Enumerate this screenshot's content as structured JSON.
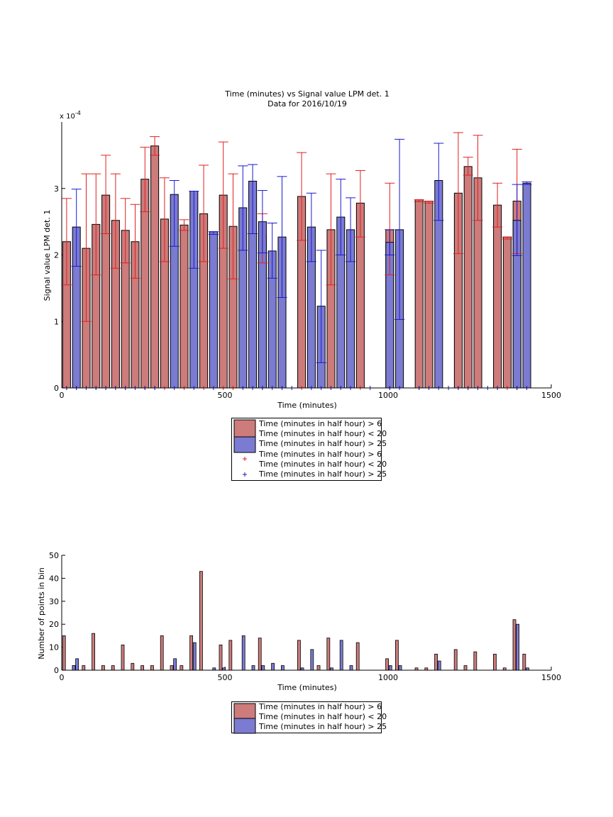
{
  "chart_data": [
    {
      "type": "bar",
      "title": "Time (minutes) vs Signal value LPM det. 1",
      "subtitle": "Data for 2016/10/19",
      "xlabel": "Time (minutes)",
      "ylabel": "Signal value LPM det. 1",
      "y_exponent_label": "x 10",
      "y_exponent_power": "-4",
      "xlim": [
        0,
        1500
      ],
      "ylim": [
        0,
        4
      ],
      "x_ticks": [
        0,
        500,
        1000,
        1500
      ],
      "y_ticks": [
        0,
        1,
        2,
        3
      ],
      "grid": false,
      "colors": {
        "red": "#cd7b7b",
        "blue": "#7b7bd2",
        "red_err": "#e02020",
        "blue_err": "#1a1ad0"
      },
      "legend": {
        "placement": "bottom-center",
        "entries": [
          "Time (minutes in half hour) > 6",
          "Time (minutes in half hour) < 20",
          "Time (minutes in half hour) > 25",
          "Time (minutes in half hour) > 6",
          "Time (minutes in half hour) < 20",
          "Time (minutes in half hour) > 25"
        ]
      },
      "series": [
        {
          "color": "red",
          "bars": [
            {
              "x": 15,
              "y": 2.2,
              "lo": 1.55,
              "hi": 2.85
            },
            {
              "x": 75,
              "y": 2.1,
              "lo": 1.0,
              "hi": 3.22
            },
            {
              "x": 105,
              "y": 2.46,
              "lo": 1.7,
              "hi": 3.22
            },
            {
              "x": 135,
              "y": 2.9,
              "lo": 2.32,
              "hi": 3.5
            },
            {
              "x": 165,
              "y": 2.52,
              "lo": 1.8,
              "hi": 3.22
            },
            {
              "x": 195,
              "y": 2.37,
              "lo": 1.88,
              "hi": 2.85
            },
            {
              "x": 225,
              "y": 2.2,
              "lo": 1.65,
              "hi": 2.76
            },
            {
              "x": 255,
              "y": 3.14,
              "lo": 2.65,
              "hi": 3.62
            },
            {
              "x": 285,
              "y": 3.64,
              "lo": 3.5,
              "hi": 3.78
            },
            {
              "x": 315,
              "y": 2.54,
              "lo": 1.9,
              "hi": 3.16
            },
            {
              "x": 375,
              "y": 2.45,
              "lo": 2.37,
              "hi": 2.53
            },
            {
              "x": 435,
              "y": 2.62,
              "lo": 1.9,
              "hi": 3.35
            },
            {
              "x": 495,
              "y": 2.9,
              "lo": 2.1,
              "hi": 3.7
            },
            {
              "x": 525,
              "y": 2.43,
              "lo": 1.64,
              "hi": 3.22
            },
            {
              "x": 615,
              "y": 2.3,
              "lo": 1.88,
              "hi": 2.62
            },
            {
              "x": 735,
              "y": 2.88,
              "lo": 2.22,
              "hi": 3.54
            },
            {
              "x": 825,
              "y": 2.38,
              "lo": 1.55,
              "hi": 3.22
            },
            {
              "x": 915,
              "y": 2.78,
              "lo": 2.27,
              "hi": 3.27
            },
            {
              "x": 1005,
              "y": 2.38,
              "lo": 1.7,
              "hi": 3.08
            },
            {
              "x": 1095,
              "y": 2.83,
              "lo": 2.8,
              "hi": 2.83
            },
            {
              "x": 1125,
              "y": 2.81,
              "lo": 2.78,
              "hi": 2.81
            },
            {
              "x": 1215,
              "y": 2.93,
              "lo": 2.02,
              "hi": 3.84
            },
            {
              "x": 1245,
              "y": 3.33,
              "lo": 3.2,
              "hi": 3.47
            },
            {
              "x": 1275,
              "y": 3.16,
              "lo": 2.52,
              "hi": 3.8
            },
            {
              "x": 1335,
              "y": 2.75,
              "lo": 2.42,
              "hi": 3.08
            },
            {
              "x": 1365,
              "y": 2.27,
              "lo": 2.24,
              "hi": 2.27
            },
            {
              "x": 1395,
              "y": 2.81,
              "lo": 2.02,
              "hi": 3.59
            }
          ]
        },
        {
          "color": "blue",
          "bars": [
            {
              "x": 45,
              "y": 2.42,
              "lo": 1.83,
              "hi": 2.99
            },
            {
              "x": 345,
              "y": 2.91,
              "lo": 2.13,
              "hi": 3.12
            },
            {
              "x": 405,
              "y": 2.96,
              "lo": 1.8,
              "hi": 2.96
            },
            {
              "x": 465,
              "y": 2.35,
              "lo": 2.31,
              "hi": 2.35
            },
            {
              "x": 555,
              "y": 2.71,
              "lo": 2.07,
              "hi": 3.34
            },
            {
              "x": 585,
              "y": 3.11,
              "lo": 2.32,
              "hi": 3.36
            },
            {
              "x": 615,
              "y": 2.5,
              "lo": 2.03,
              "hi": 2.97
            },
            {
              "x": 645,
              "y": 2.06,
              "lo": 1.65,
              "hi": 2.48
            },
            {
              "x": 675,
              "y": 2.27,
              "lo": 1.36,
              "hi": 3.18
            },
            {
              "x": 765,
              "y": 2.42,
              "lo": 1.9,
              "hi": 2.93
            },
            {
              "x": 795,
              "y": 1.23,
              "lo": 0.38,
              "hi": 2.07
            },
            {
              "x": 855,
              "y": 2.57,
              "lo": 2.0,
              "hi": 3.14
            },
            {
              "x": 885,
              "y": 2.38,
              "lo": 1.9,
              "hi": 2.86
            },
            {
              "x": 1005,
              "y": 2.19,
              "lo": 2.0,
              "hi": 2.38
            },
            {
              "x": 1035,
              "y": 2.38,
              "lo": 1.03,
              "hi": 3.74
            },
            {
              "x": 1155,
              "y": 3.12,
              "lo": 2.52,
              "hi": 3.68
            },
            {
              "x": 1395,
              "y": 2.52,
              "lo": 1.99,
              "hi": 3.06
            },
            {
              "x": 1425,
              "y": 3.08,
              "lo": 3.06,
              "hi": 3.1
            }
          ]
        }
      ],
      "ticks_x_red": [
        15,
        45,
        75,
        105,
        135,
        165,
        195,
        225,
        255,
        285,
        315,
        375,
        435,
        495,
        525,
        615,
        735,
        825,
        915,
        1005,
        1095,
        1125,
        1215,
        1245,
        1275,
        1335,
        1365,
        1395
      ],
      "ticks_x_blue": [
        15,
        45,
        75,
        105,
        135,
        165,
        195,
        225,
        255,
        285,
        345,
        405,
        465,
        555,
        585,
        615,
        645,
        675,
        705,
        765,
        795,
        825,
        855,
        885,
        945,
        1005,
        1035,
        1095,
        1125,
        1155,
        1185,
        1215,
        1245,
        1275,
        1305,
        1335,
        1395,
        1425
      ]
    },
    {
      "type": "bar",
      "xlabel": "Time (minutes)",
      "ylabel": "Number of points in bin",
      "xlim": [
        0,
        1500
      ],
      "ylim": [
        0,
        50
      ],
      "x_ticks": [
        0,
        500,
        1000,
        1500
      ],
      "y_ticks": [
        0,
        10,
        20,
        30,
        40,
        50
      ],
      "grid": false,
      "legend": {
        "placement": "bottom-center",
        "entries": [
          "Time (minutes in half hour) > 6",
          "Time (minutes in half hour) < 20",
          "Time (minutes in half hour) > 25"
        ]
      },
      "series": [
        {
          "color": "red",
          "bars": [
            {
              "x": 7,
              "y": 15
            },
            {
              "x": 37,
              "y": 2
            },
            {
              "x": 67,
              "y": 2
            },
            {
              "x": 97,
              "y": 16
            },
            {
              "x": 127,
              "y": 2
            },
            {
              "x": 157,
              "y": 2
            },
            {
              "x": 187,
              "y": 11
            },
            {
              "x": 217,
              "y": 3
            },
            {
              "x": 247,
              "y": 2
            },
            {
              "x": 277,
              "y": 2
            },
            {
              "x": 307,
              "y": 15
            },
            {
              "x": 337,
              "y": 2
            },
            {
              "x": 367,
              "y": 2
            },
            {
              "x": 397,
              "y": 15
            },
            {
              "x": 427,
              "y": 43
            },
            {
              "x": 487,
              "y": 11
            },
            {
              "x": 517,
              "y": 13
            },
            {
              "x": 607,
              "y": 14
            },
            {
              "x": 727,
              "y": 13
            },
            {
              "x": 787,
              "y": 2
            },
            {
              "x": 817,
              "y": 14
            },
            {
              "x": 907,
              "y": 12
            },
            {
              "x": 997,
              "y": 5
            },
            {
              "x": 1027,
              "y": 13
            },
            {
              "x": 1087,
              "y": 1
            },
            {
              "x": 1117,
              "y": 1
            },
            {
              "x": 1147,
              "y": 7
            },
            {
              "x": 1207,
              "y": 9
            },
            {
              "x": 1237,
              "y": 2
            },
            {
              "x": 1267,
              "y": 8
            },
            {
              "x": 1327,
              "y": 7
            },
            {
              "x": 1357,
              "y": 1
            },
            {
              "x": 1387,
              "y": 22
            },
            {
              "x": 1417,
              "y": 7
            }
          ]
        },
        {
          "color": "blue",
          "bars": [
            {
              "x": 37,
              "y": 2
            },
            {
              "x": 47,
              "y": 5
            },
            {
              "x": 347,
              "y": 2
            },
            {
              "x": 347,
              "y": 5
            },
            {
              "x": 407,
              "y": 12
            },
            {
              "x": 467,
              "y": 1
            },
            {
              "x": 497,
              "y": 1
            },
            {
              "x": 557,
              "y": 15
            },
            {
              "x": 587,
              "y": 2
            },
            {
              "x": 617,
              "y": 2
            },
            {
              "x": 647,
              "y": 3
            },
            {
              "x": 677,
              "y": 2
            },
            {
              "x": 737,
              "y": 1
            },
            {
              "x": 767,
              "y": 9
            },
            {
              "x": 827,
              "y": 1
            },
            {
              "x": 857,
              "y": 13
            },
            {
              "x": 887,
              "y": 2
            },
            {
              "x": 1007,
              "y": 2
            },
            {
              "x": 1037,
              "y": 2
            },
            {
              "x": 1157,
              "y": 4
            },
            {
              "x": 1397,
              "y": 20
            },
            {
              "x": 1427,
              "y": 1
            }
          ]
        }
      ]
    }
  ]
}
